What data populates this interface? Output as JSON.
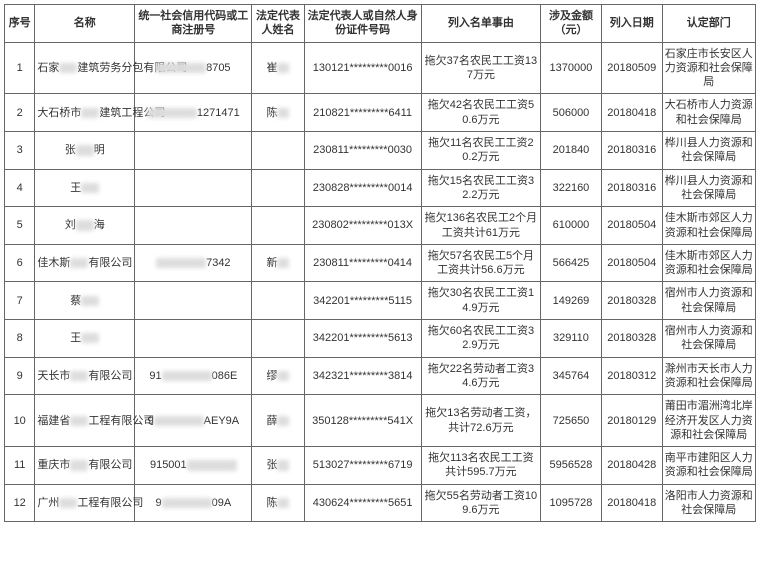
{
  "columns": [
    "序号",
    "名称",
    "统一社会信用代码或工商注册号",
    "法定代表人姓名",
    "法定代表人或自然人身份证件号码",
    "列入名单事由",
    "涉及金额（元）",
    "列入日期",
    "认定部门"
  ],
  "rows": [
    {
      "idx": "1",
      "name_pre": "石家",
      "name_post": "建筑劳务分包有限公司",
      "code_suffix": "8705",
      "rep_pre": "崔",
      "rep_post": "",
      "id": "130121*********0016",
      "reason": "拖欠37名农民工工资137万元",
      "amount": "1370000",
      "date": "20180509",
      "dept": "石家庄市长安区人力资源和社会保障局"
    },
    {
      "idx": "2",
      "name_pre": "大石桥市",
      "name_post": "建筑工程公司",
      "code_suffix": "1271471",
      "rep_pre": "陈",
      "rep_post": "",
      "id": "210821*********6411",
      "reason": "拖欠42名农民工工资50.6万元",
      "amount": "506000",
      "date": "20180418",
      "dept": "大石桥市人力资源和社会保障局"
    },
    {
      "idx": "3",
      "name_pre": "张",
      "name_post": "明",
      "code_suffix": "",
      "rep_pre": "",
      "rep_post": "",
      "id": "230811*********0030",
      "reason": "拖欠11名农民工工资20.2万元",
      "amount": "201840",
      "date": "20180316",
      "dept": "桦川县人力资源和社会保障局"
    },
    {
      "idx": "4",
      "name_pre": "王",
      "name_post": "",
      "code_suffix": "",
      "rep_pre": "",
      "rep_post": "",
      "id": "230828*********0014",
      "reason": "拖欠15名农民工工资32.2万元",
      "amount": "322160",
      "date": "20180316",
      "dept": "桦川县人力资源和社会保障局"
    },
    {
      "idx": "5",
      "name_pre": "刘",
      "name_post": "海",
      "code_suffix": "",
      "rep_pre": "",
      "rep_post": "",
      "id": "230802*********013X",
      "reason": "拖欠136名农民工2个月工资共计61万元",
      "amount": "610000",
      "date": "20180504",
      "dept": "佳木斯市郊区人力资源和社会保障局"
    },
    {
      "idx": "6",
      "name_pre": "佳木斯",
      "name_post": "有限公司",
      "code_suffix": "7342",
      "rep_pre": "新",
      "rep_post": "",
      "id": "230811*********0414",
      "reason": "拖欠57名农民工5个月工资共计56.6万元",
      "amount": "566425",
      "date": "20180504",
      "dept": "佳木斯市郊区人力资源和社会保障局"
    },
    {
      "idx": "7",
      "name_pre": "蔡",
      "name_post": "",
      "code_suffix": "",
      "rep_pre": "",
      "rep_post": "",
      "id": "342201*********5115",
      "reason": "拖欠30名农民工工资14.9万元",
      "amount": "149269",
      "date": "20180328",
      "dept": "宿州市人力资源和社会保障局"
    },
    {
      "idx": "8",
      "name_pre": "王",
      "name_post": "",
      "code_suffix": "",
      "rep_pre": "",
      "rep_post": "",
      "id": "342201*********5613",
      "reason": "拖欠60名农民工工资32.9万元",
      "amount": "329110",
      "date": "20180328",
      "dept": "宿州市人力资源和社会保障局"
    },
    {
      "idx": "9",
      "name_pre": "天长市",
      "name_post": "有限公司",
      "code_suffix": "086E",
      "code_pre": "91",
      "rep_pre": "缪",
      "rep_post": "",
      "id": "342321*********3814",
      "reason": "拖欠22名劳动者工资34.6万元",
      "amount": "345764",
      "date": "20180312",
      "dept": "滁州市天长市人力资源和社会保障局"
    },
    {
      "idx": "10",
      "name_pre": "福建省",
      "name_post": "工程有限公司",
      "code_suffix": "AEY9A",
      "code_pre": "9",
      "rep_pre": "薛",
      "rep_post": "",
      "id": "350128*********541X",
      "reason": "拖欠13名劳动者工资，共计72.6万元",
      "amount": "725650",
      "date": "20180129",
      "dept": "莆田市湄洲湾北岸经济开发区人力资源和社会保障局"
    },
    {
      "idx": "11",
      "name_pre": "重庆市",
      "name_post": "有限公司",
      "code_suffix": "",
      "code_pre": "915001",
      "rep_pre": "张",
      "rep_post": "",
      "id": "513027*********6719",
      "reason": "拖欠113名农民工工资共计595.7万元",
      "amount": "5956528",
      "date": "20180428",
      "dept": "南平市建阳区人力资源和社会保障局"
    },
    {
      "idx": "12",
      "name_pre": "广州",
      "name_post": "工程有限公司",
      "code_suffix": "09A",
      "code_pre": "9",
      "rep_pre": "陈",
      "rep_post": "",
      "id": "430624*********5651",
      "reason": "拖欠55名劳动者工资109.6万元",
      "amount": "1095728",
      "date": "20180418",
      "dept": "洛阳市人力资源和社会保障局"
    }
  ]
}
